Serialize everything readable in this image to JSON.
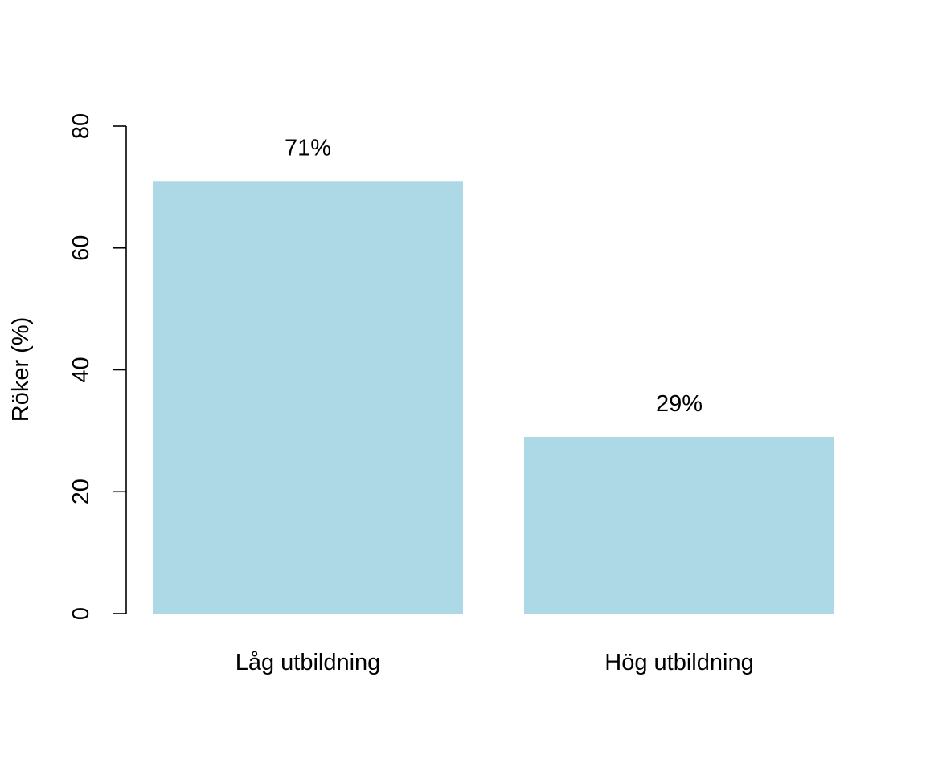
{
  "chart_data": {
    "type": "bar",
    "categories": [
      "Låg utbildning",
      "Hög utbildning"
    ],
    "values": [
      71,
      29
    ],
    "data_labels": [
      "71%",
      "29%"
    ],
    "title": "",
    "xlabel": "",
    "ylabel": "Röker (%)",
    "ylim": [
      0,
      80
    ],
    "yticks": [
      0,
      20,
      40,
      60,
      80
    ],
    "bar_color": "#add8e6",
    "grid": false,
    "legend": "none"
  }
}
